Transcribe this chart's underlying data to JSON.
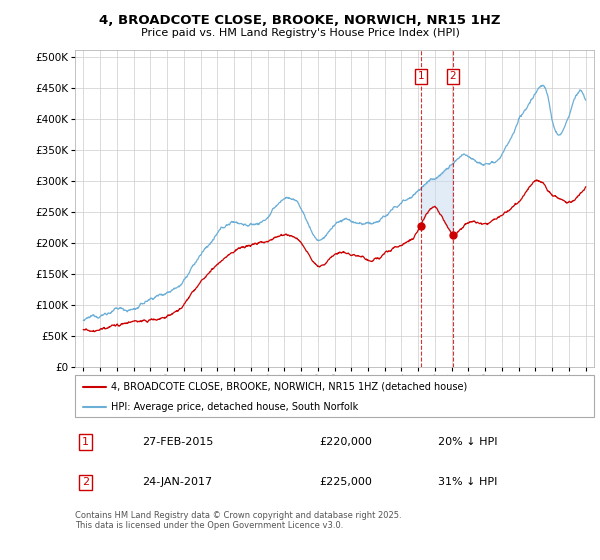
{
  "title": "4, BROADCOTE CLOSE, BROOKE, NORWICH, NR15 1HZ",
  "subtitle": "Price paid vs. HM Land Registry's House Price Index (HPI)",
  "legend_line1": "4, BROADCOTE CLOSE, BROOKE, NORWICH, NR15 1HZ (detached house)",
  "legend_line2": "HPI: Average price, detached house, South Norfolk",
  "transaction1_label": "1",
  "transaction1_date": "27-FEB-2015",
  "transaction1_price": "£220,000",
  "transaction1_hpi": "20% ↓ HPI",
  "transaction2_label": "2",
  "transaction2_date": "24-JAN-2017",
  "transaction2_price": "£225,000",
  "transaction2_hpi": "31% ↓ HPI",
  "t1_x": 2015.15,
  "t2_x": 2017.07,
  "price_t1": 220000,
  "price_t2": 225000,
  "hpi_color": "#6baed6",
  "price_color": "#cc0000",
  "shaded_color": "#c6dbef",
  "footer": "Contains HM Land Registry data © Crown copyright and database right 2025.\nThis data is licensed under the Open Government Licence v3.0.",
  "ylim_min": 0,
  "ylim_max": 510000,
  "xlim_min": 1994.5,
  "xlim_max": 2025.5,
  "fig_width": 6.0,
  "fig_height": 5.6,
  "dpi": 100
}
